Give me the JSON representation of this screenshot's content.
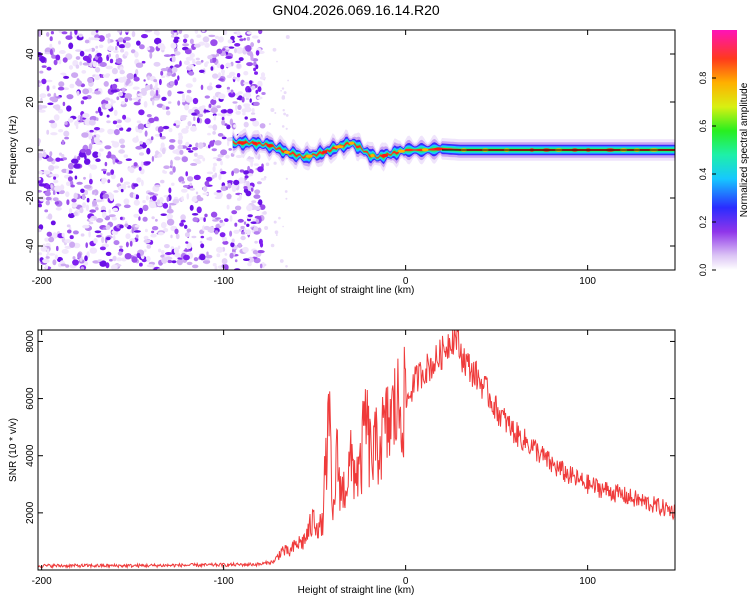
{
  "title": "GN04.2026.069.16.14.R20",
  "chart_data": [
    {
      "type": "heatmap",
      "title": "GN04.2026.069.16.14.R20",
      "xlabel": "Height of straight line (km)",
      "ylabel": "Frequency (Hz)",
      "xlim": [
        -202,
        148
      ],
      "ylim": [
        -50,
        50
      ],
      "x_ticks": [
        -200,
        -100,
        0,
        100
      ],
      "y_ticks": [
        -40,
        -20,
        0,
        20,
        40
      ],
      "x_tick_labels": [
        "-200",
        "-100",
        "0",
        "100"
      ],
      "y_tick_labels": [
        "-40",
        "-20",
        "0",
        "20",
        "40"
      ],
      "noise_region_x": [
        -202,
        -78
      ],
      "ridge": {
        "name": "Doppler ridge",
        "x": [
          -95,
          -85,
          -75,
          -65,
          -55,
          -45,
          -38,
          -30,
          -25,
          -20,
          -15,
          -10,
          -5,
          0,
          10,
          20,
          30,
          50,
          80,
          110,
          148
        ],
        "freq": [
          3,
          3,
          2,
          -1,
          -3,
          -1,
          1,
          3,
          1,
          -2,
          -3,
          -2,
          -1,
          0,
          0,
          0.5,
          0,
          0,
          0,
          0,
          0
        ]
      },
      "colorbar": {
        "label": "Normalized spectral amplitude",
        "range": [
          0,
          1
        ],
        "ticks": [
          0.0,
          0.2,
          0.4,
          0.6,
          0.8
        ],
        "tick_labels": [
          "0.0",
          "0.2",
          "0.4",
          "0.6",
          "0.8"
        ]
      }
    },
    {
      "type": "line",
      "xlabel": "Height of straight line (km)",
      "ylabel": "SNR (10 * v/v)",
      "xlim": [
        -202,
        148
      ],
      "ylim": [
        0,
        8400
      ],
      "x_ticks": [
        -200,
        -100,
        0,
        100
      ],
      "y_ticks": [
        2000,
        4000,
        6000,
        8000
      ],
      "x_tick_labels": [
        "-200",
        "-100",
        "0",
        "100"
      ],
      "y_tick_labels": [
        "2000",
        "4000",
        "6000",
        "8000"
      ],
      "series": [
        {
          "name": "SNR",
          "color": "#ef3b3b",
          "x": [
            -202,
            -150,
            -100,
            -80,
            -72,
            -68,
            -64,
            -60,
            -56,
            -50,
            -46,
            -44,
            -42,
            -40,
            -38,
            -35,
            -30,
            -25,
            -22,
            -20,
            -18,
            -15,
            -10,
            -5,
            0,
            5,
            10,
            15,
            20,
            25,
            28,
            30,
            33,
            36,
            40,
            45,
            50,
            55,
            60,
            70,
            80,
            90,
            100,
            110,
            120,
            130,
            140,
            148
          ],
          "values": [
            150,
            150,
            180,
            200,
            300,
            700,
            600,
            900,
            1000,
            1800,
            1400,
            3500,
            5300,
            1500,
            4000,
            2600,
            3700,
            3300,
            5500,
            4200,
            4000,
            4400,
            5000,
            5700,
            5800,
            6600,
            7000,
            7200,
            7600,
            8100,
            8200,
            7600,
            7300,
            7000,
            6700,
            6200,
            5600,
            5200,
            4800,
            4300,
            3700,
            3300,
            3000,
            2800,
            2600,
            2400,
            2200,
            2050
          ]
        }
      ]
    }
  ]
}
